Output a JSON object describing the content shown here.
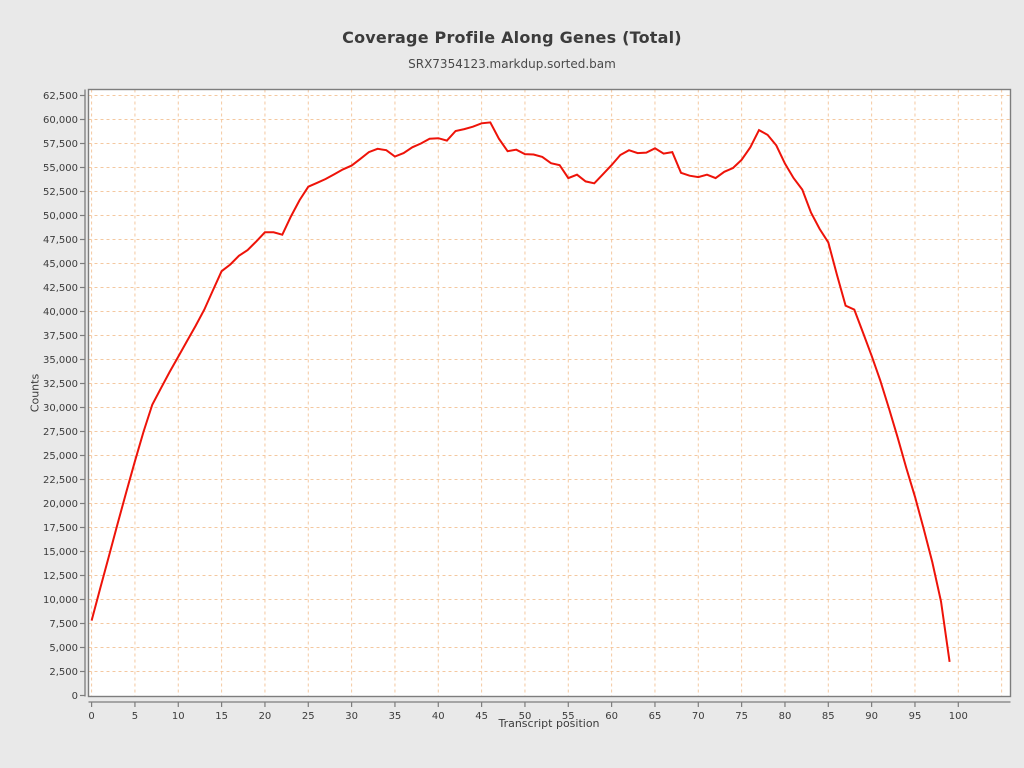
{
  "chart_data": {
    "type": "line",
    "title": "Coverage Profile Along Genes (Total)",
    "subtitle": "SRX7354123.markdup.sorted.bam",
    "xlabel": "Transcript position",
    "ylabel": "Counts",
    "legend": "none",
    "grid": true,
    "x_axis": {
      "min": 0,
      "max": 105,
      "tick_step": 5,
      "last_labeled_tick": 100
    },
    "y_axis": {
      "min": 0,
      "max": 62500,
      "tick_step": 2500
    },
    "x_tick_labels": [
      "0",
      "5",
      "10",
      "15",
      "20",
      "25",
      "30",
      "35",
      "40",
      "45",
      "50",
      "55",
      "60",
      "65",
      "70",
      "75",
      "80",
      "85",
      "90",
      "95",
      "100"
    ],
    "y_tick_labels": [
      "0",
      "2,500",
      "5,000",
      "7,500",
      "10,000",
      "12,500",
      "15,000",
      "17,500",
      "20,000",
      "22,500",
      "25,000",
      "27,500",
      "30,000",
      "32,500",
      "35,000",
      "37,500",
      "40,000",
      "42,500",
      "45,000",
      "47,500",
      "50,000",
      "52,500",
      "55,000",
      "57,500",
      "60,000",
      "62,500"
    ],
    "x": [
      0,
      1,
      2,
      3,
      4,
      5,
      6,
      7,
      8,
      9,
      10,
      11,
      12,
      13,
      14,
      15,
      16,
      17,
      18,
      19,
      20,
      21,
      22,
      23,
      24,
      25,
      26,
      27,
      28,
      29,
      30,
      31,
      32,
      33,
      34,
      35,
      36,
      37,
      38,
      39,
      40,
      41,
      42,
      43,
      44,
      45,
      46,
      47,
      48,
      49,
      50,
      51,
      52,
      53,
      54,
      55,
      56,
      57,
      58,
      59,
      60,
      61,
      62,
      63,
      64,
      65,
      66,
      67,
      68,
      69,
      70,
      71,
      72,
      73,
      74,
      75,
      76,
      77,
      78,
      79,
      80,
      81,
      82,
      83,
      84,
      85,
      86,
      87,
      88,
      89,
      90,
      91,
      92,
      93,
      94,
      95,
      96,
      97,
      98,
      99
    ],
    "values": [
      7800,
      11200,
      14500,
      17900,
      21200,
      24400,
      27500,
      30300,
      32000,
      33700,
      35300,
      36900,
      38500,
      40200,
      42200,
      44200,
      44900,
      45800,
      46400,
      47300,
      48250,
      48250,
      48000,
      49900,
      51600,
      53000,
      53400,
      53800,
      54300,
      54800,
      55200,
      55900,
      56600,
      56950,
      56800,
      56150,
      56500,
      57100,
      57500,
      58000,
      58050,
      57800,
      58800,
      59000,
      59250,
      59600,
      59700,
      58000,
      56700,
      56850,
      56400,
      56350,
      56100,
      55450,
      55250,
      53900,
      54250,
      53550,
      53350,
      54300,
      55250,
      56300,
      56800,
      56500,
      56550,
      57000,
      56450,
      56600,
      54450,
      54150,
      54000,
      54250,
      53900,
      54550,
      54950,
      55800,
      57100,
      58900,
      58400,
      57300,
      55400,
      53900,
      52700,
      50300,
      48600,
      47200,
      43800,
      40600,
      40200,
      37800,
      35400,
      32800,
      29900,
      26900,
      23700,
      20700,
      17400,
      13900,
      9800,
      3500
    ],
    "colors": {
      "line": "#ee1309",
      "grid": "#f4c8a0",
      "frame": "#7d7d7d",
      "figure_background": "#e9e9e9",
      "plot_background": "#ffffff",
      "tick_text": "#3c3c3c"
    }
  }
}
